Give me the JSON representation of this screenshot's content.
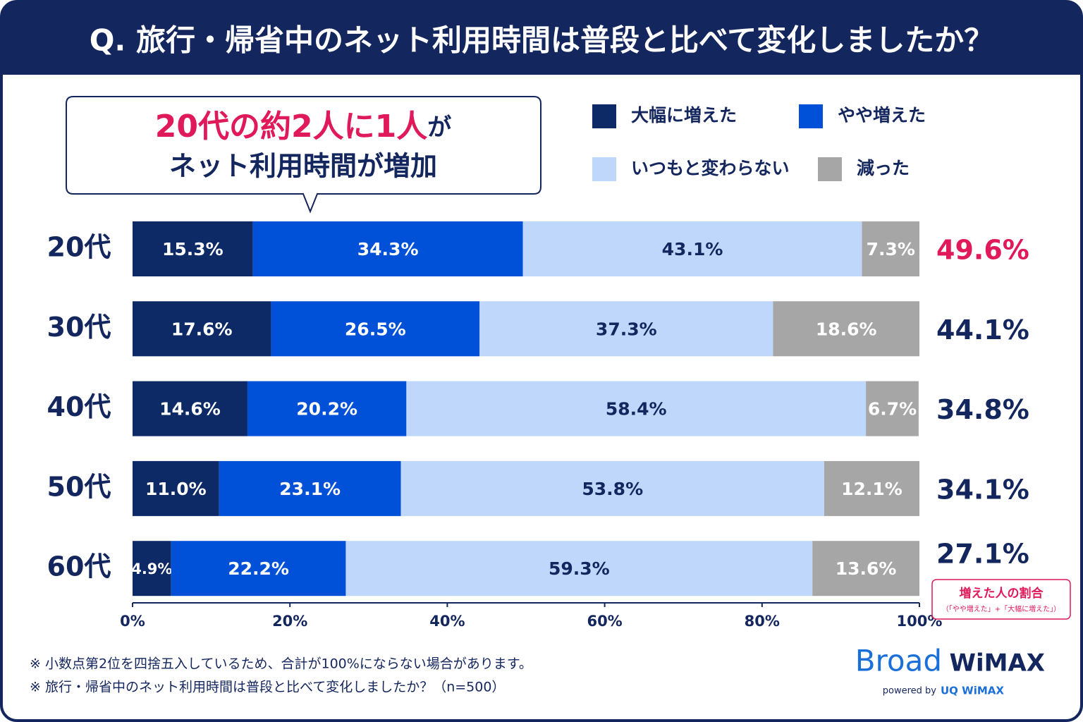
{
  "chart_data": {
    "type": "stacked-barh",
    "title": "Q. 旅行・帰省中のネット利用時間は普段と比べて変化しましたか？",
    "callout": {
      "highlight": "20代の約2人に1人",
      "rest": "が",
      "line2": "ネット利用時間が増加"
    },
    "categories": [
      "20代",
      "30代",
      "40代",
      "50代",
      "60代"
    ],
    "series": [
      {
        "name": "大幅に増えた",
        "color": "#0d2a66",
        "values": [
          15.3,
          17.6,
          14.6,
          11.0,
          4.9
        ],
        "value_labels": [
          "15.3%",
          "17.6%",
          "14.6%",
          "11.0%",
          "4.9%"
        ]
      },
      {
        "name": "やや増えた",
        "color": "#0050d8",
        "values": [
          34.3,
          26.5,
          20.2,
          23.1,
          22.2
        ],
        "value_labels": [
          "34.3%",
          "26.5%",
          "20.2%",
          "23.1%",
          "22.2%"
        ]
      },
      {
        "name": "いつもと変わらない",
        "color": "#bfd7fb",
        "values": [
          43.1,
          37.3,
          58.4,
          53.8,
          59.3
        ],
        "value_labels": [
          "43.1%",
          "37.3%",
          "58.4%",
          "53.8%",
          "59.3%"
        ]
      },
      {
        "name": "減った",
        "color": "#a6a6a6",
        "values": [
          7.3,
          18.6,
          6.7,
          12.1,
          13.6
        ],
        "value_labels": [
          "7.3%",
          "18.6%",
          "6.7%",
          "12.1%",
          "13.6%"
        ]
      }
    ],
    "totals": {
      "label": "増えた人の割合",
      "note": "（「やや増えた」+「大幅に増えた」）",
      "highlight_color": "#e0195a",
      "values": [
        49.6,
        44.1,
        34.8,
        34.1,
        27.1
      ],
      "value_labels": [
        "49.6%",
        "44.1%",
        "34.8%",
        "34.1%",
        "27.1%"
      ]
    },
    "xlim": [
      0,
      100
    ],
    "xticks": [
      {
        "value": 0,
        "label": "0%"
      },
      {
        "value": 20,
        "label": "20%"
      },
      {
        "value": 40,
        "label": "40%"
      },
      {
        "value": 60,
        "label": "60%"
      },
      {
        "value": 80,
        "label": "80%"
      },
      {
        "value": 100,
        "label": "100%"
      }
    ],
    "footnotes": [
      "※ 小数点第2位を四捨五入しているため、合計が100%にならない場合があります。",
      "※ 旅行・帰省中のネット利用時間は普段と比べて変化しましたか？（n=500）"
    ],
    "logo": {
      "broad": "Broad",
      "wimax": "WiMAX",
      "powered": "powered by",
      "uq": "UQ WiMAX"
    }
  }
}
